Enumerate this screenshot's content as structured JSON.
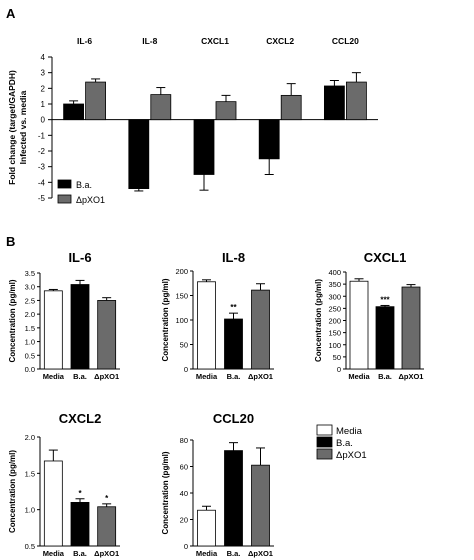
{
  "panel_labels": {
    "a": "A",
    "b": "B"
  },
  "colors": {
    "black": "#000000",
    "gray": "#6b6b6b",
    "white": "#ffffff"
  },
  "chart_data": [
    {
      "panel": "A",
      "type": "bar",
      "ylabel_line1": "Fold change (target/GAPDH)",
      "ylabel_line2": "Infected vs. media",
      "ylim": [
        -5,
        4
      ],
      "yticks": [
        "-5",
        "-4",
        "-3",
        "-2",
        "-1",
        "0",
        "1",
        "2",
        "3",
        "4"
      ],
      "groups": [
        "IL-6",
        "IL-8",
        "CXCL1",
        "CXCL2",
        "CCL20"
      ],
      "legend": [
        {
          "label": "B.a.",
          "color": "#000000"
        },
        {
          "label": "ΔpXO1",
          "color": "#6b6b6b"
        }
      ],
      "series": [
        {
          "name": "B.a.",
          "values": [
            1.0,
            -4.4,
            -3.5,
            -2.5,
            2.15
          ],
          "errors": [
            0.2,
            0.15,
            1.0,
            1.0,
            0.35
          ]
        },
        {
          "name": "ΔpXO1",
          "values": [
            2.4,
            1.6,
            1.15,
            1.55,
            2.4
          ],
          "errors": [
            0.2,
            0.45,
            0.4,
            0.75,
            0.6
          ]
        }
      ]
    },
    {
      "panel": "B",
      "type": "bar",
      "title": "IL-6",
      "ylabel": "Concentration (pg/ml)",
      "categories": [
        "Media",
        "B.a.",
        "ΔpXO1"
      ],
      "values": [
        2.85,
        3.08,
        2.5
      ],
      "errors": [
        0.05,
        0.15,
        0.1
      ],
      "ylim": [
        0,
        3.5
      ],
      "yticks": [
        "0.0",
        "0.5",
        "1.0",
        "1.5",
        "2.0",
        "2.5",
        "3.0",
        "3.5"
      ],
      "significance": [
        "",
        "",
        ""
      ]
    },
    {
      "panel": "B",
      "type": "bar",
      "title": "IL-8",
      "ylabel": "Concentration (pg/ml)",
      "categories": [
        "Media",
        "B.a.",
        "ΔpXO1"
      ],
      "values": [
        178,
        102,
        161
      ],
      "errors": [
        4,
        12,
        13
      ],
      "ylim": [
        0,
        200
      ],
      "yticks": [
        "0",
        "50",
        "100",
        "150",
        "200"
      ],
      "significance": [
        "",
        "**",
        ""
      ]
    },
    {
      "panel": "B",
      "type": "bar",
      "title": "CXCL1",
      "ylabel": "Concentration (pg/ml)",
      "categories": [
        "Media",
        "B.a.",
        "ΔpXO1"
      ],
      "values": [
        362,
        257,
        338
      ],
      "errors": [
        10,
        5,
        10
      ],
      "ylim": [
        0,
        400
      ],
      "yticks": [
        "0",
        "50",
        "100",
        "150",
        "200",
        "250",
        "300",
        "350",
        "400"
      ],
      "significance": [
        "",
        "***",
        ""
      ]
    },
    {
      "panel": "B",
      "type": "bar",
      "title": "CXCL2",
      "ylabel": "Concentration (pg/ml)",
      "categories": [
        "Media",
        "B.a.",
        "ΔpXO1"
      ],
      "values": [
        1.67,
        1.1,
        1.04
      ],
      "errors": [
        0.15,
        0.05,
        0.04
      ],
      "ylim": [
        0.5,
        2.0
      ],
      "yticks": [
        "0.5",
        "1.0",
        "1.5",
        "2.0"
      ],
      "significance": [
        "",
        "*",
        "*"
      ]
    },
    {
      "panel": "B",
      "type": "bar",
      "title": "CCL20",
      "ylabel": "Concentration (pg/ml)",
      "categories": [
        "Media",
        "B.a.",
        "ΔpXO1"
      ],
      "values": [
        27,
        72,
        61
      ],
      "errors": [
        3,
        6,
        13
      ],
      "ylim": [
        0,
        80
      ],
      "yticks": [
        "0",
        "20",
        "40",
        "60",
        "80"
      ],
      "significance": [
        "",
        "",
        ""
      ]
    }
  ],
  "legend_b": [
    {
      "label": "Media",
      "color": "#ffffff"
    },
    {
      "label": "B.a.",
      "color": "#000000"
    },
    {
      "label": "ΔpXO1",
      "color": "#6b6b6b"
    }
  ]
}
